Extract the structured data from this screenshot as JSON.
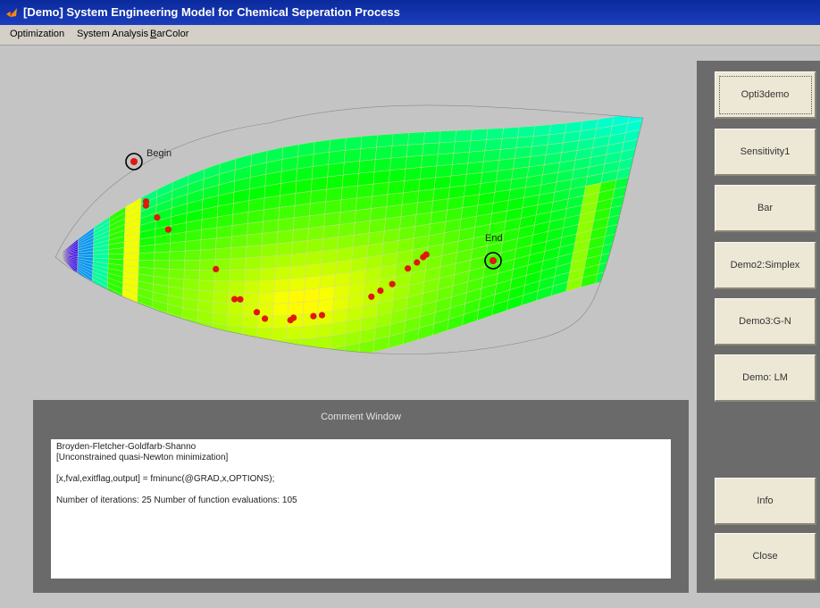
{
  "window": {
    "title": "[Demo] System Engineering Model for Chemical Seperation Process",
    "icon": "matlab-logo-icon"
  },
  "menu": {
    "items": [
      {
        "label": "Optimization"
      },
      {
        "label": "System Analysis"
      },
      {
        "pre": "",
        "underline": "B",
        "post": "arColor"
      }
    ]
  },
  "plot": {
    "begin_label": "Begin",
    "end_label": "End",
    "path_color": "#e0180c",
    "path": [
      {
        "u": 0.14,
        "v": 0.05
      },
      {
        "u": 0.14,
        "v": 0.08
      },
      {
        "u": 0.16,
        "v": 0.2
      },
      {
        "u": 0.18,
        "v": 0.3
      },
      {
        "u": 0.265,
        "v": 0.55
      },
      {
        "u": 0.3,
        "v": 0.7
      },
      {
        "u": 0.31,
        "v": 0.7
      },
      {
        "u": 0.34,
        "v": 0.76
      },
      {
        "u": 0.355,
        "v": 0.79
      },
      {
        "u": 0.4,
        "v": 0.8
      },
      {
        "u": 0.405,
        "v": 0.79
      },
      {
        "u": 0.44,
        "v": 0.79
      },
      {
        "u": 0.455,
        "v": 0.79
      },
      {
        "u": 0.54,
        "v": 0.74
      },
      {
        "u": 0.555,
        "v": 0.72
      },
      {
        "u": 0.575,
        "v": 0.7
      },
      {
        "u": 0.6,
        "v": 0.64
      },
      {
        "u": 0.615,
        "v": 0.62
      },
      {
        "u": 0.625,
        "v": 0.6
      },
      {
        "u": 0.63,
        "v": 0.59
      }
    ]
  },
  "buttons": [
    {
      "label": "Opti3demo"
    },
    {
      "label": "Sensitivity1"
    },
    {
      "label": "Bar"
    },
    {
      "label": "Demo2:Simplex"
    },
    {
      "label": "Demo3:G-N"
    },
    {
      "label": "Demo: LM"
    },
    {
      "label": "Info"
    },
    {
      "label": "Close"
    }
  ],
  "comment": {
    "title": "Comment Window",
    "lines": [
      "Broyden-Fletcher-Goldfarb-Shanno",
      "[Unconstrained quasi-Newton minimization]",
      "",
      "[x,fval,exitflag,output] = fminunc(@GRAD,x,OPTIONS);",
      "",
      "Number of iterations: 25   Number of function evaluations: 105"
    ]
  }
}
